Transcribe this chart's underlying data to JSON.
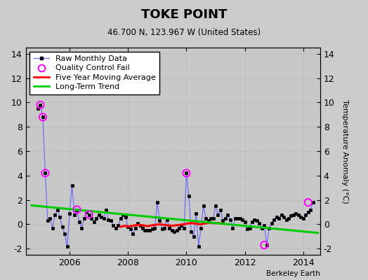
{
  "title": "TOKE POINT",
  "subtitle": "46.700 N, 123.967 W (United States)",
  "ylabel": "Temperature Anomaly (°C)",
  "credit": "Berkeley Earth",
  "ylim": [
    -2.5,
    14.5
  ],
  "yticks": [
    -2,
    0,
    2,
    4,
    6,
    8,
    10,
    12,
    14
  ],
  "xlim": [
    2004.5,
    2014.58
  ],
  "xticks": [
    2006,
    2008,
    2010,
    2012,
    2014
  ],
  "bg_color": "#cccccc",
  "plot_bg_color": "#c8c8c8",
  "raw_line_color": "#6666ff",
  "raw_marker_color": "#000000",
  "ma_color": "#ff0000",
  "trend_color": "#00cc00",
  "qc_color": "#ff00ff",
  "raw_data_x": [
    2004.917,
    2005.0,
    2005.083,
    2005.167,
    2005.25,
    2005.333,
    2005.417,
    2005.5,
    2005.583,
    2005.667,
    2005.75,
    2005.833,
    2005.917,
    2006.0,
    2006.083,
    2006.167,
    2006.25,
    2006.333,
    2006.417,
    2006.5,
    2006.583,
    2006.667,
    2006.75,
    2006.833,
    2006.917,
    2007.0,
    2007.083,
    2007.167,
    2007.25,
    2007.333,
    2007.417,
    2007.5,
    2007.583,
    2007.667,
    2007.75,
    2007.833,
    2007.917,
    2008.0,
    2008.083,
    2008.167,
    2008.25,
    2008.333,
    2008.417,
    2008.5,
    2008.583,
    2008.667,
    2008.75,
    2008.833,
    2008.917,
    2009.0,
    2009.083,
    2009.167,
    2009.25,
    2009.333,
    2009.417,
    2009.5,
    2009.583,
    2009.667,
    2009.75,
    2009.833,
    2009.917,
    2010.0,
    2010.083,
    2010.167,
    2010.25,
    2010.333,
    2010.417,
    2010.5,
    2010.583,
    2010.667,
    2010.75,
    2010.833,
    2010.917,
    2011.0,
    2011.083,
    2011.167,
    2011.25,
    2011.333,
    2011.417,
    2011.5,
    2011.583,
    2011.667,
    2011.75,
    2011.833,
    2011.917,
    2012.0,
    2012.083,
    2012.167,
    2012.25,
    2012.333,
    2012.417,
    2012.5,
    2012.583,
    2012.667,
    2012.75,
    2012.833,
    2012.917,
    2013.0,
    2013.083,
    2013.167,
    2013.25,
    2013.333,
    2013.417,
    2013.5,
    2013.583,
    2013.667,
    2013.75,
    2013.833,
    2013.917,
    2014.0,
    2014.083,
    2014.167,
    2014.25,
    2014.333
  ],
  "raw_data_y": [
    9.5,
    9.8,
    8.8,
    4.2,
    0.3,
    0.5,
    -0.3,
    0.8,
    1.2,
    0.6,
    -0.2,
    -0.8,
    -1.8,
    0.9,
    3.2,
    0.8,
    1.2,
    0.2,
    -0.3,
    0.5,
    1.0,
    0.8,
    0.5,
    0.2,
    0.5,
    0.8,
    0.6,
    0.5,
    1.2,
    0.4,
    0.3,
    -0.1,
    -0.3,
    -0.1,
    0.5,
    0.8,
    0.6,
    -0.2,
    -0.4,
    -0.8,
    -0.3,
    0.1,
    -0.1,
    -0.3,
    -0.5,
    -0.5,
    -0.5,
    -0.4,
    -0.3,
    1.8,
    0.3,
    -0.4,
    -0.3,
    0.4,
    -0.3,
    -0.5,
    -0.6,
    -0.5,
    -0.3,
    -0.1,
    -0.3,
    4.2,
    2.3,
    -0.6,
    -1.0,
    0.9,
    -1.8,
    -0.3,
    1.5,
    0.5,
    0.3,
    0.5,
    0.5,
    1.5,
    0.8,
    1.2,
    0.3,
    0.5,
    0.8,
    0.4,
    -0.3,
    0.5,
    0.5,
    0.5,
    0.4,
    0.2,
    -0.4,
    -0.3,
    0.2,
    0.4,
    0.3,
    0.1,
    -0.3,
    -0.1,
    -1.7,
    -0.3,
    0.1,
    0.4,
    0.6,
    0.5,
    0.8,
    0.6,
    0.4,
    0.5,
    0.7,
    0.8,
    0.9,
    0.8,
    0.6,
    0.5,
    0.8,
    1.0,
    1.2,
    1.8
  ],
  "qc_fail_x": [
    2005.0,
    2005.083,
    2005.167,
    2006.25,
    2006.667,
    2010.0,
    2012.667,
    2014.167
  ],
  "qc_fail_y": [
    9.8,
    8.8,
    4.2,
    1.2,
    0.8,
    4.2,
    -1.7,
    1.8
  ],
  "moving_avg_x": [
    2007.75,
    2007.833,
    2007.917,
    2008.0,
    2008.083,
    2008.167,
    2008.25,
    2008.333,
    2008.417,
    2008.5,
    2008.583,
    2008.667,
    2008.75,
    2008.833,
    2008.917,
    2009.0,
    2009.083,
    2009.167,
    2009.25,
    2009.333,
    2009.417,
    2009.5,
    2009.583,
    2009.667,
    2009.75,
    2009.833,
    2009.917,
    2010.0,
    2010.083,
    2010.167,
    2010.25,
    2010.333,
    2010.417,
    2010.5,
    2010.583,
    2010.667,
    2010.75,
    2010.833,
    2010.917,
    2011.0,
    2011.083,
    2011.167,
    2011.25
  ],
  "moving_avg_y": [
    -0.2,
    -0.15,
    -0.12,
    -0.18,
    -0.15,
    -0.12,
    -0.08,
    -0.05,
    -0.05,
    -0.08,
    -0.12,
    -0.15,
    -0.12,
    -0.08,
    -0.05,
    -0.02,
    0.0,
    -0.02,
    -0.05,
    -0.08,
    -0.1,
    -0.12,
    -0.1,
    -0.08,
    -0.05,
    -0.02,
    0.0,
    0.05,
    0.08,
    0.1,
    0.08,
    0.05,
    0.02,
    0.0,
    0.05,
    0.08,
    0.12,
    0.12,
    0.1,
    0.1,
    0.1,
    0.08,
    0.05
  ],
  "trend_x": [
    2004.7,
    2014.5
  ],
  "trend_y": [
    1.55,
    -0.7
  ]
}
